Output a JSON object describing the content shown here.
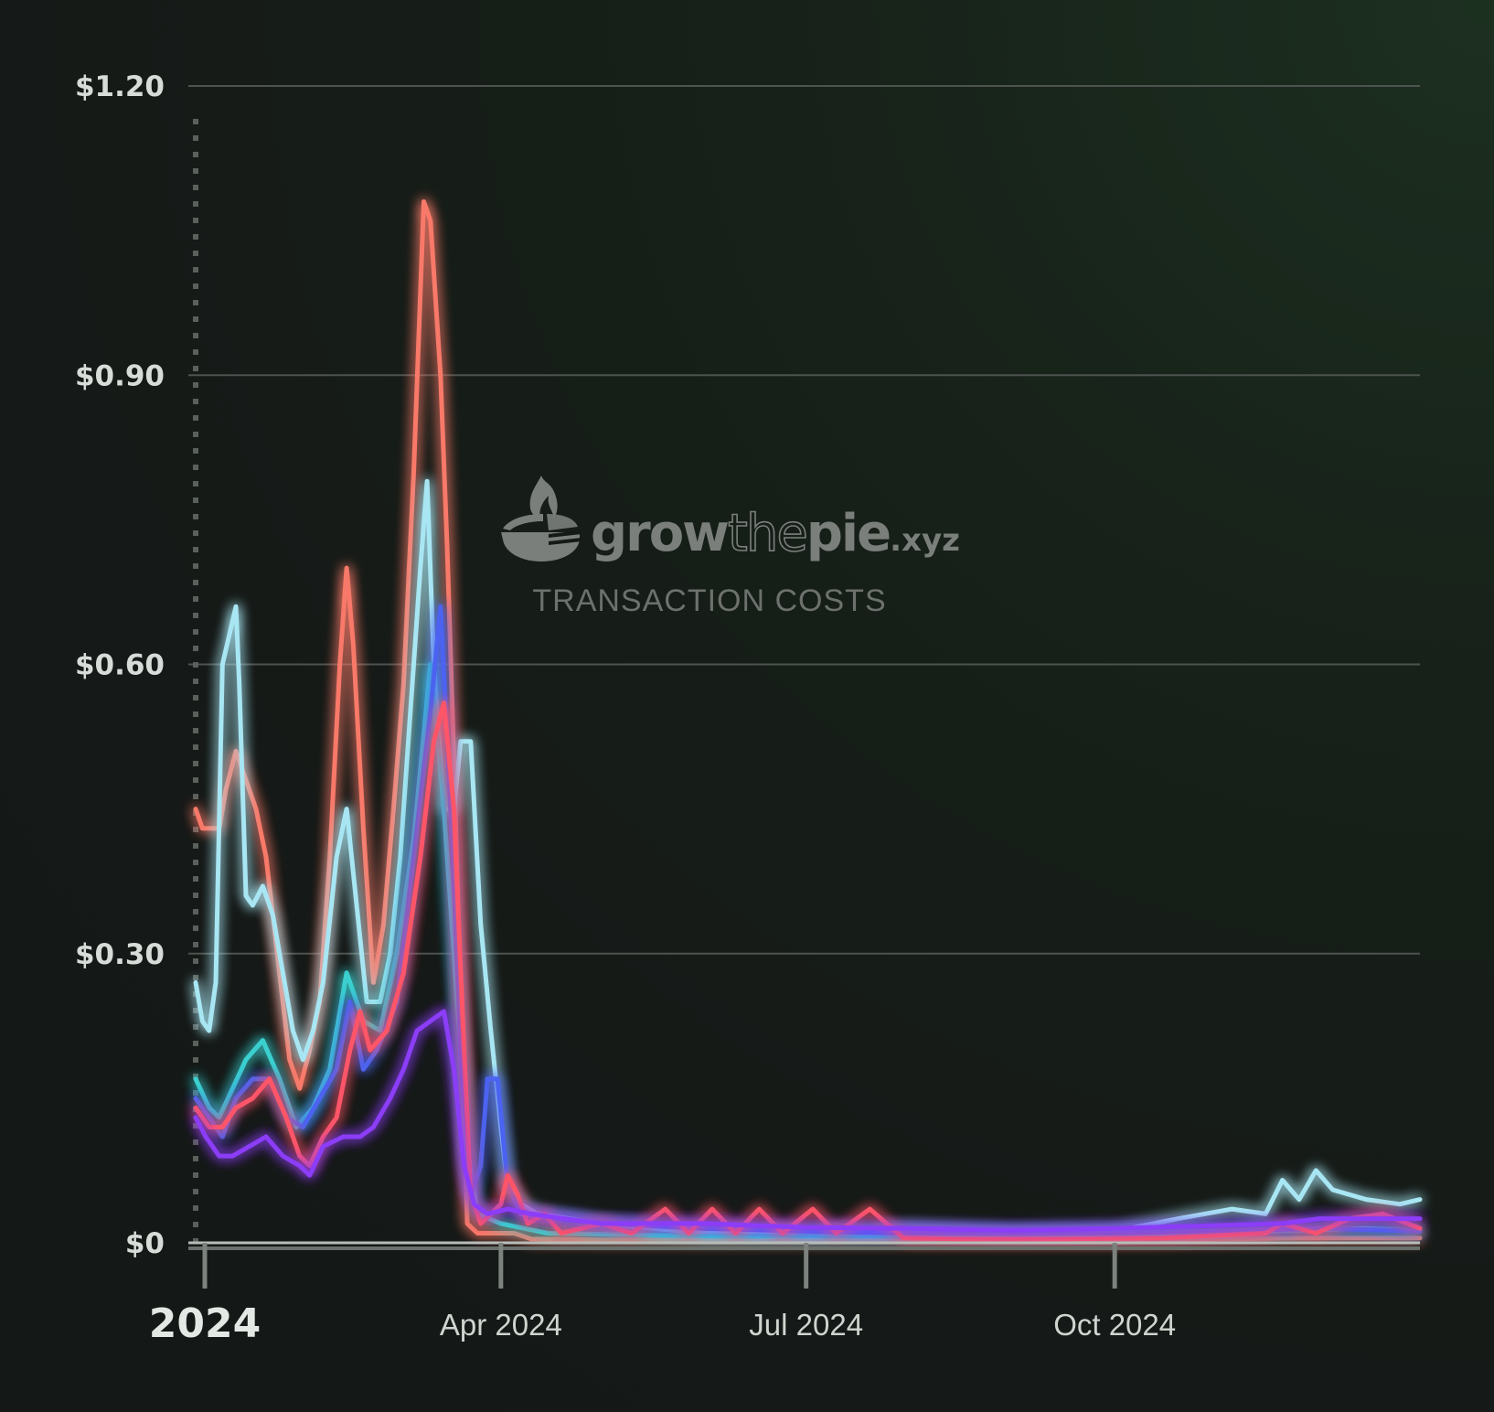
{
  "watermark": {
    "brand": "growthepie",
    "brand_grow": "grow",
    "brand_the": "the",
    "brand_pie": "pie",
    "brand_tld": ".xyz",
    "subtitle": "TRANSACTION COSTS",
    "icon": "pie-flame-logo-icon"
  },
  "chart_data": {
    "type": "line",
    "title": "",
    "xlabel": "",
    "ylabel": "",
    "x_range": [
      "2024-01-01",
      "2024-12-31"
    ],
    "ylim": [
      0,
      1.2
    ],
    "y_ticks": [
      {
        "value": 0,
        "label": "$0"
      },
      {
        "value": 0.3,
        "label": "$0.30"
      },
      {
        "value": 0.6,
        "label": "$0.60"
      },
      {
        "value": 0.9,
        "label": "$0.90"
      },
      {
        "value": 1.2,
        "label": "$1.20"
      }
    ],
    "x_ticks": [
      {
        "date": "2024-01-01",
        "label": "2024",
        "emphasis": true
      },
      {
        "date": "2024-04-01",
        "label": "Apr 2024"
      },
      {
        "date": "2024-07-01",
        "label": "Jul 2024"
      },
      {
        "date": "2024-10-01",
        "label": "Oct 2024"
      }
    ],
    "grid": true,
    "legend": "none",
    "series": [
      {
        "color": "#f87969",
        "points": [
          [
            "2024-01-01",
            0.45
          ],
          [
            "2024-01-03",
            0.43
          ],
          [
            "2024-01-06",
            0.43
          ],
          [
            "2024-01-08",
            0.43
          ],
          [
            "2024-01-10",
            0.47
          ],
          [
            "2024-01-13",
            0.51
          ],
          [
            "2024-01-16",
            0.48
          ],
          [
            "2024-01-19",
            0.45
          ],
          [
            "2024-01-22",
            0.4
          ],
          [
            "2024-01-26",
            0.28
          ],
          [
            "2024-01-29",
            0.19
          ],
          [
            "2024-02-01",
            0.16
          ],
          [
            "2024-02-04",
            0.2
          ],
          [
            "2024-02-07",
            0.25
          ],
          [
            "2024-02-10",
            0.4
          ],
          [
            "2024-02-13",
            0.6
          ],
          [
            "2024-02-15",
            0.7
          ],
          [
            "2024-02-17",
            0.62
          ],
          [
            "2024-02-20",
            0.43
          ],
          [
            "2024-02-23",
            0.27
          ],
          [
            "2024-02-26",
            0.33
          ],
          [
            "2024-02-29",
            0.45
          ],
          [
            "2024-03-03",
            0.58
          ],
          [
            "2024-03-06",
            0.8
          ],
          [
            "2024-03-09",
            1.08
          ],
          [
            "2024-03-11",
            1.06
          ],
          [
            "2024-03-14",
            0.9
          ],
          [
            "2024-03-16",
            0.72
          ],
          [
            "2024-03-18",
            0.5
          ],
          [
            "2024-03-20",
            0.25
          ],
          [
            "2024-03-22",
            0.02
          ],
          [
            "2024-03-25",
            0.01
          ],
          [
            "2024-04-01",
            0.01
          ],
          [
            "2024-04-05",
            0.01
          ],
          [
            "2024-04-10",
            0.004
          ],
          [
            "2024-05-01",
            0.003
          ],
          [
            "2024-06-01",
            0.003
          ],
          [
            "2024-07-01",
            0.003
          ],
          [
            "2024-08-01",
            0.003
          ],
          [
            "2024-09-01",
            0.003
          ],
          [
            "2024-10-01",
            0.003
          ],
          [
            "2024-11-01",
            0.004
          ],
          [
            "2024-12-01",
            0.005
          ],
          [
            "2024-12-31",
            0.005
          ]
        ]
      },
      {
        "color": "#a8e6f3",
        "points": [
          [
            "2024-01-01",
            0.27
          ],
          [
            "2024-01-03",
            0.23
          ],
          [
            "2024-01-05",
            0.22
          ],
          [
            "2024-01-07",
            0.27
          ],
          [
            "2024-01-09",
            0.6
          ],
          [
            "2024-01-11",
            0.63
          ],
          [
            "2024-01-13",
            0.66
          ],
          [
            "2024-01-14",
            0.58
          ],
          [
            "2024-01-16",
            0.36
          ],
          [
            "2024-01-18",
            0.35
          ],
          [
            "2024-01-21",
            0.37
          ],
          [
            "2024-01-24",
            0.34
          ],
          [
            "2024-01-27",
            0.28
          ],
          [
            "2024-01-30",
            0.22
          ],
          [
            "2024-02-02",
            0.19
          ],
          [
            "2024-02-05",
            0.22
          ],
          [
            "2024-02-08",
            0.27
          ],
          [
            "2024-02-12",
            0.4
          ],
          [
            "2024-02-15",
            0.45
          ],
          [
            "2024-02-18",
            0.35
          ],
          [
            "2024-02-21",
            0.25
          ],
          [
            "2024-02-25",
            0.25
          ],
          [
            "2024-02-28",
            0.3
          ],
          [
            "2024-03-02",
            0.4
          ],
          [
            "2024-03-05",
            0.55
          ],
          [
            "2024-03-08",
            0.7
          ],
          [
            "2024-03-10",
            0.79
          ],
          [
            "2024-03-12",
            0.6
          ],
          [
            "2024-03-15",
            0.45
          ],
          [
            "2024-03-18",
            0.45
          ],
          [
            "2024-03-20",
            0.52
          ],
          [
            "2024-03-23",
            0.52
          ],
          [
            "2024-03-26",
            0.33
          ],
          [
            "2024-03-29",
            0.22
          ],
          [
            "2024-04-01",
            0.12
          ],
          [
            "2024-04-03",
            0.06
          ],
          [
            "2024-04-07",
            0.04
          ],
          [
            "2024-04-12",
            0.03
          ],
          [
            "2024-05-01",
            0.02
          ],
          [
            "2024-06-01",
            0.01
          ],
          [
            "2024-07-01",
            0.01
          ],
          [
            "2024-08-01",
            0.015
          ],
          [
            "2024-09-01",
            0.01
          ],
          [
            "2024-10-01",
            0.012
          ],
          [
            "2024-10-20",
            0.025
          ],
          [
            "2024-11-05",
            0.035
          ],
          [
            "2024-11-15",
            0.03
          ],
          [
            "2024-11-20",
            0.065
          ],
          [
            "2024-11-25",
            0.045
          ],
          [
            "2024-11-30",
            0.075
          ],
          [
            "2024-12-05",
            0.055
          ],
          [
            "2024-12-15",
            0.045
          ],
          [
            "2024-12-25",
            0.04
          ],
          [
            "2024-12-31",
            0.045
          ]
        ]
      },
      {
        "color": "#3acfcf",
        "points": [
          [
            "2024-01-01",
            0.17
          ],
          [
            "2024-01-05",
            0.14
          ],
          [
            "2024-01-08",
            0.13
          ],
          [
            "2024-01-12",
            0.16
          ],
          [
            "2024-01-16",
            0.19
          ],
          [
            "2024-01-21",
            0.21
          ],
          [
            "2024-01-26",
            0.17
          ],
          [
            "2024-01-31",
            0.12
          ],
          [
            "2024-02-05",
            0.14
          ],
          [
            "2024-02-10",
            0.18
          ],
          [
            "2024-02-15",
            0.28
          ],
          [
            "2024-02-20",
            0.23
          ],
          [
            "2024-02-25",
            0.22
          ],
          [
            "2024-03-01",
            0.3
          ],
          [
            "2024-03-06",
            0.42
          ],
          [
            "2024-03-11",
            0.6
          ],
          [
            "2024-03-15",
            0.45
          ],
          [
            "2024-03-19",
            0.25
          ],
          [
            "2024-03-22",
            0.1
          ],
          [
            "2024-03-25",
            0.03
          ],
          [
            "2024-04-01",
            0.02
          ],
          [
            "2024-04-15",
            0.01
          ],
          [
            "2024-06-01",
            0.007
          ],
          [
            "2024-08-01",
            0.007
          ],
          [
            "2024-10-01",
            0.008
          ],
          [
            "2024-11-15",
            0.012
          ],
          [
            "2024-12-15",
            0.015
          ],
          [
            "2024-12-31",
            0.012
          ]
        ]
      },
      {
        "color": "#4c63f0",
        "points": [
          [
            "2024-01-01",
            0.15
          ],
          [
            "2024-01-05",
            0.13
          ],
          [
            "2024-01-09",
            0.11
          ],
          [
            "2024-01-13",
            0.15
          ],
          [
            "2024-01-18",
            0.17
          ],
          [
            "2024-01-23",
            0.17
          ],
          [
            "2024-01-28",
            0.13
          ],
          [
            "2024-02-02",
            0.12
          ],
          [
            "2024-02-07",
            0.15
          ],
          [
            "2024-02-12",
            0.18
          ],
          [
            "2024-02-16",
            0.25
          ],
          [
            "2024-02-20",
            0.18
          ],
          [
            "2024-02-24",
            0.2
          ],
          [
            "2024-03-01",
            0.25
          ],
          [
            "2024-03-06",
            0.4
          ],
          [
            "2024-03-11",
            0.55
          ],
          [
            "2024-03-14",
            0.66
          ],
          [
            "2024-03-17",
            0.45
          ],
          [
            "2024-03-20",
            0.2
          ],
          [
            "2024-03-23",
            0.05
          ],
          [
            "2024-03-26",
            0.08
          ],
          [
            "2024-03-28",
            0.17
          ],
          [
            "2024-03-31",
            0.17
          ],
          [
            "2024-04-03",
            0.06
          ],
          [
            "2024-04-07",
            0.03
          ],
          [
            "2024-05-01",
            0.02
          ],
          [
            "2024-06-01",
            0.015
          ],
          [
            "2024-07-01",
            0.012
          ],
          [
            "2024-08-01",
            0.01
          ],
          [
            "2024-09-01",
            0.01
          ],
          [
            "2024-10-01",
            0.01
          ],
          [
            "2024-11-01",
            0.012
          ],
          [
            "2024-12-01",
            0.015
          ],
          [
            "2024-12-31",
            0.012
          ]
        ]
      },
      {
        "color": "#fe5468",
        "points": [
          [
            "2024-01-01",
            0.14
          ],
          [
            "2024-01-05",
            0.12
          ],
          [
            "2024-01-09",
            0.12
          ],
          [
            "2024-01-13",
            0.14
          ],
          [
            "2024-01-18",
            0.15
          ],
          [
            "2024-01-23",
            0.17
          ],
          [
            "2024-01-28",
            0.13
          ],
          [
            "2024-02-01",
            0.09
          ],
          [
            "2024-02-04",
            0.08
          ],
          [
            "2024-02-08",
            0.11
          ],
          [
            "2024-02-12",
            0.13
          ],
          [
            "2024-02-16",
            0.2
          ],
          [
            "2024-02-19",
            0.24
          ],
          [
            "2024-02-22",
            0.2
          ],
          [
            "2024-02-27",
            0.22
          ],
          [
            "2024-03-03",
            0.28
          ],
          [
            "2024-03-08",
            0.4
          ],
          [
            "2024-03-12",
            0.52
          ],
          [
            "2024-03-15",
            0.56
          ],
          [
            "2024-03-18",
            0.45
          ],
          [
            "2024-03-21",
            0.2
          ],
          [
            "2024-03-23",
            0.05
          ],
          [
            "2024-03-26",
            0.02
          ],
          [
            "2024-04-01",
            0.04
          ],
          [
            "2024-04-03",
            0.07
          ],
          [
            "2024-04-06",
            0.05
          ],
          [
            "2024-04-09",
            0.02
          ],
          [
            "2024-04-14",
            0.03
          ],
          [
            "2024-04-19",
            0.01
          ],
          [
            "2024-05-01",
            0.02
          ],
          [
            "2024-05-10",
            0.01
          ],
          [
            "2024-05-20",
            0.035
          ],
          [
            "2024-05-27",
            0.01
          ],
          [
            "2024-06-03",
            0.035
          ],
          [
            "2024-06-10",
            0.01
          ],
          [
            "2024-06-17",
            0.035
          ],
          [
            "2024-06-24",
            0.01
          ],
          [
            "2024-07-03",
            0.035
          ],
          [
            "2024-07-10",
            0.01
          ],
          [
            "2024-07-20",
            0.035
          ],
          [
            "2024-07-30",
            0.005
          ],
          [
            "2024-08-15",
            0.004
          ],
          [
            "2024-09-15",
            0.004
          ],
          [
            "2024-10-15",
            0.005
          ],
          [
            "2024-11-15",
            0.01
          ],
          [
            "2024-11-20",
            0.02
          ],
          [
            "2024-11-30",
            0.01
          ],
          [
            "2024-12-10",
            0.025
          ],
          [
            "2024-12-20",
            0.03
          ],
          [
            "2024-12-31",
            0.015
          ]
        ]
      },
      {
        "color": "#8b3cf7",
        "points": [
          [
            "2024-01-01",
            0.13
          ],
          [
            "2024-01-04",
            0.11
          ],
          [
            "2024-01-08",
            0.09
          ],
          [
            "2024-01-12",
            0.09
          ],
          [
            "2024-01-17",
            0.1
          ],
          [
            "2024-01-22",
            0.11
          ],
          [
            "2024-01-27",
            0.09
          ],
          [
            "2024-02-01",
            0.08
          ],
          [
            "2024-02-04",
            0.07
          ],
          [
            "2024-02-08",
            0.1
          ],
          [
            "2024-02-14",
            0.11
          ],
          [
            "2024-02-19",
            0.11
          ],
          [
            "2024-02-23",
            0.12
          ],
          [
            "2024-02-28",
            0.15
          ],
          [
            "2024-03-03",
            0.18
          ],
          [
            "2024-03-07",
            0.22
          ],
          [
            "2024-03-11",
            0.23
          ],
          [
            "2024-03-15",
            0.24
          ],
          [
            "2024-03-18",
            0.18
          ],
          [
            "2024-03-21",
            0.08
          ],
          [
            "2024-03-24",
            0.04
          ],
          [
            "2024-03-28",
            0.03
          ],
          [
            "2024-04-03",
            0.035
          ],
          [
            "2024-04-10",
            0.03
          ],
          [
            "2024-04-20",
            0.025
          ],
          [
            "2024-05-01",
            0.02
          ],
          [
            "2024-06-01",
            0.02
          ],
          [
            "2024-06-15",
            0.018
          ],
          [
            "2024-07-01",
            0.016
          ],
          [
            "2024-08-01",
            0.015
          ],
          [
            "2024-09-01",
            0.013
          ],
          [
            "2024-10-01",
            0.015
          ],
          [
            "2024-11-01",
            0.018
          ],
          [
            "2024-11-20",
            0.02
          ],
          [
            "2024-12-01",
            0.025
          ],
          [
            "2024-12-31",
            0.025
          ]
        ]
      }
    ]
  }
}
